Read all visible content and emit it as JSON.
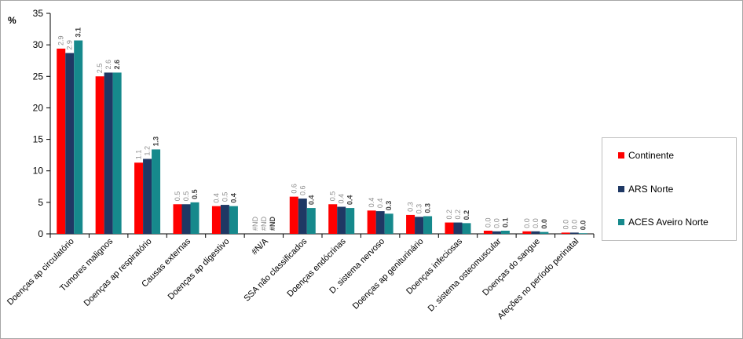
{
  "chart_data": {
    "type": "bar",
    "ylabel": "%",
    "ylim": [
      0,
      35
    ],
    "yticks": [
      0,
      5,
      10,
      15,
      20,
      25,
      30,
      35
    ],
    "categories": [
      "Doenças ap circulatório",
      "Tumores malignos",
      "Doenças ap respiratório",
      "Causas externas",
      "Doenças ap digestivo",
      "#N/A",
      "SSA não classificados",
      "Doenças endócrinas",
      "D. sistema nervoso",
      "Doenças ap geniturinário",
      "Doenças infeciosas",
      "D. sistema osteomuscular",
      "Doenças do sangue",
      "Afeções no período perinatal"
    ],
    "series": [
      {
        "name": "Continente",
        "color": "#ff0000",
        "values": [
          29.4,
          25.0,
          11.3,
          4.7,
          4.4,
          0,
          5.9,
          4.7,
          3.7,
          3.0,
          1.8,
          0.5,
          0.4,
          0.2
        ],
        "labels": [
          "2.9",
          "2.5",
          "1.1",
          "0.5",
          "0.4",
          "#ND",
          "0.6",
          "0.5",
          "0.4",
          "0.3",
          "0.2",
          "0.0",
          "0.0",
          "0.0"
        ]
      },
      {
        "name": "ARS Norte",
        "color": "#1f3864",
        "values": [
          28.7,
          25.6,
          11.9,
          4.7,
          4.6,
          0,
          5.6,
          4.3,
          3.6,
          2.7,
          1.8,
          0.4,
          0.4,
          0.2
        ],
        "labels": [
          "2.9",
          "2.6",
          "1.2",
          "0.5",
          "0.5",
          "#ND",
          "0.6",
          "0.4",
          "0.4",
          "0.3",
          "0.2",
          "0.0",
          "0.0",
          "0.0"
        ]
      },
      {
        "name": "ACES Aveiro Norte",
        "color": "#16898c",
        "values": [
          30.7,
          25.6,
          13.4,
          5.0,
          4.4,
          0,
          4.1,
          4.1,
          3.2,
          2.8,
          1.7,
          0.5,
          0.3,
          0.1
        ],
        "labels": [
          "3.1",
          "2.6",
          "1.3",
          "0.5",
          "0.4",
          "#ND",
          "0.4",
          "0.4",
          "0.3",
          "0.3",
          "0.2",
          "0.1",
          "0.0",
          "0.0"
        ]
      }
    ],
    "legend_position": "right",
    "grid": false
  }
}
